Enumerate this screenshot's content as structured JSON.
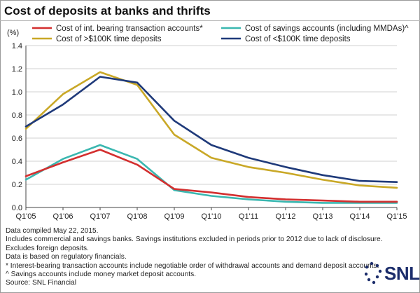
{
  "chart_data": {
    "type": "line",
    "title": "Cost of deposits at banks and thrifts",
    "ylabel": "(%)",
    "xlabel": "",
    "ylim": [
      0,
      1.4
    ],
    "yticks": [
      "0.0",
      "0.2",
      "0.4",
      "0.6",
      "0.8",
      "1.0",
      "1.2",
      "1.4"
    ],
    "categories": [
      "Q1'05",
      "Q1'06",
      "Q1'07",
      "Q1'08",
      "Q1'09",
      "Q1'10",
      "Q1'11",
      "Q1'12",
      "Q1'13",
      "Q1'14",
      "Q1'15"
    ],
    "grid": "horizontal",
    "legend_position": "top",
    "series": [
      {
        "name": "Cost of int. bearing transaction accounts*",
        "color": "#d32f2f",
        "values": [
          0.27,
          0.39,
          0.5,
          0.37,
          0.16,
          0.13,
          0.09,
          0.07,
          0.06,
          0.05,
          0.05
        ]
      },
      {
        "name": "Cost of savings accounts (including MMDAs)^",
        "color": "#3ab7b0",
        "values": [
          0.24,
          0.42,
          0.54,
          0.42,
          0.15,
          0.1,
          0.07,
          0.05,
          0.04,
          0.04,
          0.04
        ]
      },
      {
        "name": "Cost of >$100K time deposits",
        "color": "#c9a827",
        "values": [
          0.68,
          0.98,
          1.17,
          1.06,
          0.63,
          0.43,
          0.35,
          0.3,
          0.24,
          0.19,
          0.17
        ]
      },
      {
        "name": "Cost of <$100K time deposits",
        "color": "#1f3a7a",
        "values": [
          0.7,
          0.89,
          1.13,
          1.08,
          0.75,
          0.54,
          0.43,
          0.35,
          0.28,
          0.23,
          0.22
        ]
      }
    ]
  },
  "notes": [
    "Data compiled May 22, 2015.",
    "Includes commercial and savings banks. Savings institutions excluded in periods prior to 2012 due to lack of disclosure.",
    "Excludes foreign deposits.",
    "Data is based on regulatory financials.",
    "* Interest-bearing transaction accounts include negotiable order of withdrawal accounts and demand deposit accounts.",
    "^ Savings accounts include money market deposit accounts.",
    "Source: SNL Financial"
  ],
  "logo": {
    "text": "SNL",
    "icon": "snl-starburst-icon",
    "color": "#1c2d6b"
  }
}
